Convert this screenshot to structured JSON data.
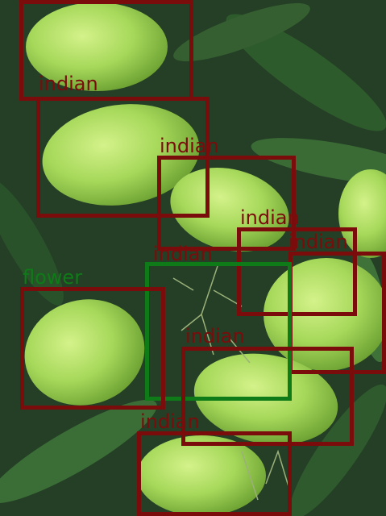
{
  "detections": [
    {
      "label": "indian",
      "color": "#7a0c0c"
    },
    {
      "label": "indian",
      "color": "#7a0c0c"
    },
    {
      "label": "indian",
      "color": "#7a0c0c"
    },
    {
      "label": "indian",
      "color": "#7a0c0c"
    },
    {
      "label": "indian",
      "color": "#7a0c0c"
    },
    {
      "label": "flower",
      "color": "#0f7a18"
    },
    {
      "label": "indian",
      "color": "#7a0c0c"
    },
    {
      "label": "indian",
      "color": "#7a0c0c"
    },
    {
      "label": "indian",
      "color": "#7a0c0c"
    },
    {
      "label": "indian",
      "color": "#7a0c0c"
    }
  ]
}
